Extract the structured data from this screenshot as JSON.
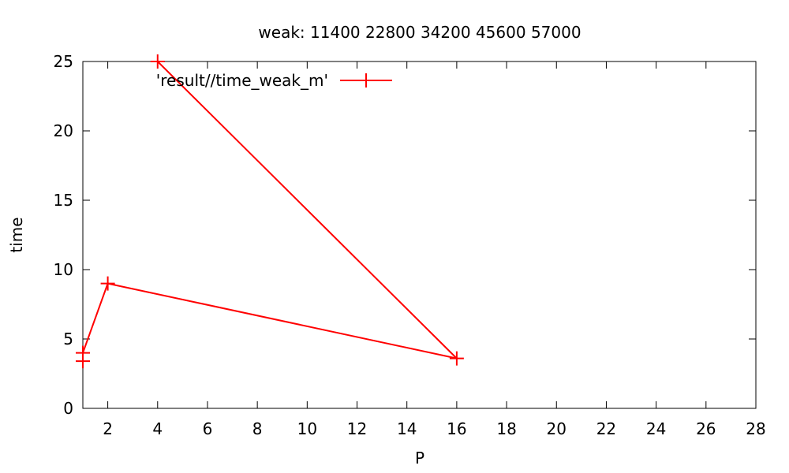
{
  "chart_data": {
    "type": "line",
    "title": "weak: 11400 22800 34200 45600 57000",
    "xlabel": "P",
    "ylabel": "time",
    "xlim": [
      1,
      28
    ],
    "ylim": [
      0,
      25
    ],
    "xticks": [
      2,
      4,
      6,
      8,
      10,
      12,
      14,
      16,
      18,
      20,
      22,
      24,
      26,
      28
    ],
    "yticks": [
      0,
      5,
      10,
      15,
      20,
      25
    ],
    "grid": false,
    "legend_position": "top-left",
    "series": [
      {
        "name": "'result//time_weak_m'",
        "color": "#ff0000",
        "marker": "plus",
        "points": [
          {
            "x": 1,
            "y": 3.4
          },
          {
            "x": 1,
            "y": 4.0
          },
          {
            "x": 2,
            "y": 9.0
          },
          {
            "x": 16,
            "y": 3.6
          },
          {
            "x": 4,
            "y": 25.0
          }
        ]
      }
    ]
  }
}
